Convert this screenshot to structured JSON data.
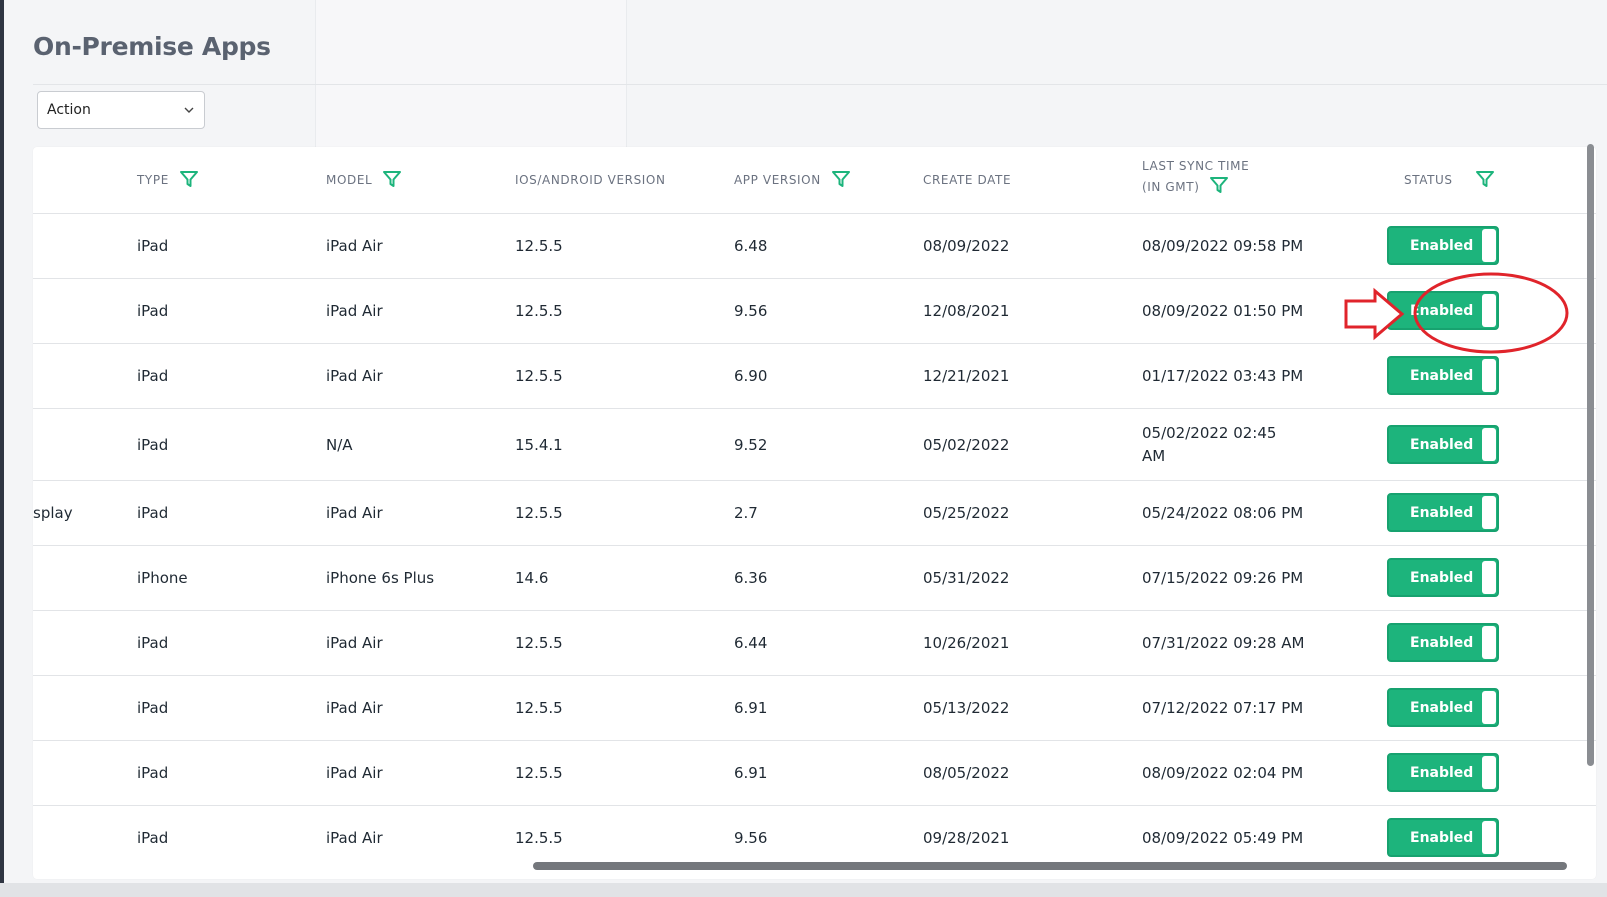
{
  "page": {
    "title": "On-Premise Apps"
  },
  "toolbar": {
    "action_label": "Action"
  },
  "colors": {
    "accent": "#1db47c",
    "filter_icon": "#1db47c",
    "annotation": "#e0242b"
  },
  "table": {
    "headers": {
      "type": "TYPE",
      "model": "MODEL",
      "os_version": "IOS/ANDROID VERSION",
      "app_version": "APP VERSION",
      "create_date": "CREATE DATE",
      "last_sync_1": "LAST SYNC TIME",
      "last_sync_2": "(IN GMT)",
      "status": "STATUS"
    },
    "rows": [
      {
        "prefix": "",
        "type": "iPad",
        "model": "iPad Air",
        "os": "12.5.5",
        "app": "6.48",
        "created": "08/09/2022",
        "sync": "08/09/2022 09:58 PM",
        "status": "Enabled"
      },
      {
        "prefix": "",
        "type": "iPad",
        "model": "iPad Air",
        "os": "12.5.5",
        "app": "9.56",
        "created": "12/08/2021",
        "sync": "08/09/2022 01:50 PM",
        "status": "Enabled"
      },
      {
        "prefix": "",
        "type": "iPad",
        "model": "iPad Air",
        "os": "12.5.5",
        "app": "6.90",
        "created": "12/21/2021",
        "sync": "01/17/2022 03:43 PM",
        "status": "Enabled"
      },
      {
        "prefix": "",
        "type": "iPad",
        "model": "N/A",
        "os": "15.4.1",
        "app": "9.52",
        "created": "05/02/2022",
        "sync": "05/02/2022 02:45 AM",
        "status": "Enabled"
      },
      {
        "prefix": "splay",
        "type": "iPad",
        "model": "iPad Air",
        "os": "12.5.5",
        "app": "2.7",
        "created": "05/25/2022",
        "sync": "05/24/2022 08:06 PM",
        "status": "Enabled"
      },
      {
        "prefix": "",
        "type": "iPhone",
        "model": "iPhone 6s Plus",
        "os": "14.6",
        "app": "6.36",
        "created": "05/31/2022",
        "sync": "07/15/2022 09:26 PM",
        "status": "Enabled"
      },
      {
        "prefix": "",
        "type": "iPad",
        "model": "iPad Air",
        "os": "12.5.5",
        "app": "6.44",
        "created": "10/26/2021",
        "sync": "07/31/2022 09:28 AM",
        "status": "Enabled"
      },
      {
        "prefix": "",
        "type": "iPad",
        "model": "iPad Air",
        "os": "12.5.5",
        "app": "6.91",
        "created": "05/13/2022",
        "sync": "07/12/2022 07:17 PM",
        "status": "Enabled"
      },
      {
        "prefix": "",
        "type": "iPad",
        "model": "iPad Air",
        "os": "12.5.5",
        "app": "6.91",
        "created": "08/05/2022",
        "sync": "08/09/2022 02:04 PM",
        "status": "Enabled"
      },
      {
        "prefix": "",
        "type": "iPad",
        "model": "iPad Air",
        "os": "12.5.5",
        "app": "9.56",
        "created": "09/28/2021",
        "sync": "08/09/2022 05:49 PM",
        "status": "Enabled"
      }
    ]
  }
}
